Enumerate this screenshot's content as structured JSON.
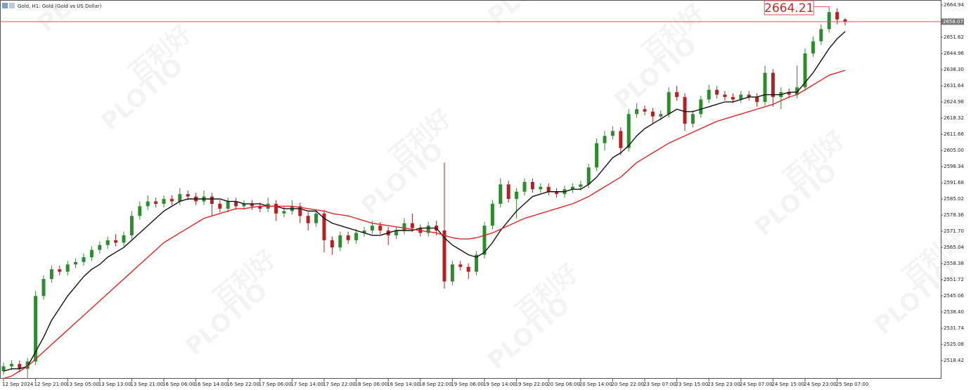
{
  "chart_data": {
    "type": "candlestick",
    "title": "Gold, H1: Gold (Gold vs US Dollar)",
    "watermark": [
      "PLOTIO",
      "百利好"
    ],
    "bull_color": "#2e8b2e",
    "bear_color": "#b22222",
    "price_line_color": "#d9534f",
    "categories": [
      "12 Sep 2024",
      null,
      null,
      null,
      "12 Sep 21:00",
      null,
      null,
      null,
      "13 Sep 05:00",
      null,
      null,
      null,
      "13 Sep 13:00",
      null,
      null,
      null,
      "13 Sep 21:00",
      null,
      null,
      null,
      "16 Sep 06:00",
      null,
      null,
      null,
      "16 Sep 14:00",
      null,
      null,
      null,
      "16 Sep 22:00",
      null,
      null,
      null,
      "17 Sep 06:00",
      null,
      null,
      null,
      "17 Sep 14:00",
      null,
      null,
      null,
      "17 Sep 22:00",
      null,
      null,
      null,
      "18 Sep 06:00",
      null,
      null,
      null,
      "18 Sep 14:00",
      null,
      null,
      null,
      "18 Sep 22:00",
      null,
      null,
      null,
      "19 Sep 06:00",
      null,
      null,
      null,
      "19 Sep 14:00",
      null,
      null,
      null,
      "19 Sep 22:00",
      null,
      null,
      null,
      "20 Sep 06:00",
      null,
      null,
      null,
      "20 Sep 14:00",
      null,
      null,
      null,
      "20 Sep 22:00",
      null,
      null,
      null,
      "23 Sep 07:00",
      null,
      null,
      null,
      "23 Sep 15:00",
      null,
      null,
      null,
      "23 Sep 23:00",
      null,
      null,
      null,
      "24 Sep 07:00",
      null,
      null,
      null,
      "24 Sep 15:00",
      null,
      null,
      null,
      "24 Sep 23:00",
      null,
      null,
      null,
      "25 Sep 07:00",
      null
    ],
    "open": [
      2514,
      2516,
      2517,
      2515,
      2518,
      2545,
      2552,
      2556,
      2555,
      2558,
      2559,
      2561,
      2564,
      2566,
      2568,
      2567,
      2570,
      2578,
      2582,
      2584,
      2583,
      2585,
      2584,
      2587,
      2586,
      2584,
      2586,
      2583,
      2581,
      2584,
      2582,
      2583,
      2582,
      2581,
      2583,
      2579,
      2580,
      2582,
      2578,
      2575,
      2579,
      2568,
      2565,
      2570,
      2568,
      2571,
      2572,
      2574,
      2572,
      2570,
      2572,
      2575,
      2573,
      2571,
      2574,
      2572,
      2551,
      2558,
      2557,
      2555,
      2562,
      2574,
      2583,
      2591,
      2585,
      2588,
      2592,
      2589,
      2590,
      2588,
      2587,
      2589,
      2590,
      2591,
      2598,
      2608,
      2611,
      2613,
      2606,
      2620,
      2622,
      2621,
      2619,
      2620,
      2629,
      2627,
      2616,
      2620,
      2626,
      2630,
      2628,
      2627,
      2626,
      2628,
      2627,
      2625,
      2637,
      2627,
      2629,
      2628,
      2631,
      2645,
      2650,
      2655,
      2662,
      2659
    ],
    "high": [
      2517.5,
      2518.5,
      2518.5,
      2519.5,
      2547,
      2553.5,
      2557.5,
      2557.5,
      2559.5,
      2560.5,
      2562.5,
      2565.5,
      2567.5,
      2569.5,
      2570.5,
      2571.5,
      2580,
      2584,
      2586.5,
      2585.5,
      2586.5,
      2586.5,
      2589.5,
      2588.5,
      2587.5,
      2588.5,
      2587.5,
      2584.5,
      2585.5,
      2585.5,
      2584.5,
      2584.5,
      2583.5,
      2585.5,
      2584.5,
      2582,
      2584.5,
      2583.5,
      2579.5,
      2580.5,
      2580.5,
      2569.5,
      2571.5,
      2571.5,
      2572.5,
      2573.5,
      2576,
      2575.5,
      2573.5,
      2573.5,
      2577,
      2579,
      2574.5,
      2575.5,
      2576,
      2600,
      2559.5,
      2559.5,
      2558.5,
      2563.5,
      2575.5,
      2584.5,
      2593.5,
      2592.5,
      2589.5,
      2593.5,
      2593.5,
      2591.5,
      2591.5,
      2589.5,
      2590.5,
      2591.5,
      2592.5,
      2599.5,
      2610,
      2613,
      2615,
      2614.5,
      2622,
      2624.5,
      2623.5,
      2622.5,
      2621.5,
      2631,
      2631.5,
      2628.5,
      2621.5,
      2627.5,
      2632,
      2631.5,
      2629.5,
      2628.5,
      2629.5,
      2629.5,
      2628.5,
      2640,
      2638.5,
      2631,
      2630.5,
      2640,
      2647,
      2652,
      2657,
      2664.21,
      2663.5,
      2659.5
    ],
    "low": [
      2512.5,
      2514.5,
      2513.5,
      2511,
      2516.5,
      2543.5,
      2550.5,
      2553.5,
      2553.5,
      2556.5,
      2557.5,
      2559.5,
      2562.5,
      2564.5,
      2565.5,
      2565.5,
      2568.5,
      2576.5,
      2580.5,
      2581.5,
      2581.5,
      2582.5,
      2582.5,
      2584.5,
      2582.5,
      2582.5,
      2578,
      2579.5,
      2579.5,
      2580.5,
      2580.5,
      2580.5,
      2579.5,
      2579.5,
      2576,
      2577.5,
      2578.5,
      2575,
      2572,
      2573.5,
      2563,
      2562,
      2563.5,
      2566.5,
      2566.5,
      2569.5,
      2570.5,
      2570.5,
      2566,
      2568.5,
      2570.5,
      2571.5,
      2569.5,
      2569.5,
      2570,
      2548,
      2549.5,
      2555.5,
      2552,
      2553.5,
      2560.5,
      2572.5,
      2581.5,
      2583.5,
      2577,
      2586.5,
      2587.5,
      2587.5,
      2586.5,
      2585.5,
      2585.5,
      2587.5,
      2588.5,
      2589.5,
      2596.5,
      2605,
      2609.5,
      2603,
      2604.5,
      2618.5,
      2619.5,
      2616,
      2617.5,
      2618.5,
      2625.5,
      2613,
      2614.5,
      2618.5,
      2624.5,
      2626.5,
      2625.5,
      2624.5,
      2624.5,
      2625.5,
      2623,
      2623.5,
      2623,
      2622,
      2626.5,
      2626.5,
      2629.5,
      2643.5,
      2648.5,
      2653.5,
      2657,
      2656.5
    ],
    "close": [
      2516,
      2517,
      2515,
      2518,
      2545,
      2552,
      2556,
      2555,
      2558,
      2559,
      2561,
      2564,
      2566,
      2568,
      2567,
      2570,
      2578,
      2582,
      2584,
      2583,
      2585,
      2584,
      2587,
      2586,
      2584,
      2586,
      2583,
      2581,
      2584,
      2582,
      2583,
      2582,
      2581,
      2583,
      2579,
      2580,
      2582,
      2578,
      2575,
      2579,
      2568,
      2565,
      2570,
      2568,
      2571,
      2572,
      2574,
      2572,
      2570,
      2572,
      2575,
      2573,
      2571,
      2574,
      2572,
      2551,
      2558,
      2557,
      2555,
      2562,
      2574,
      2583,
      2591,
      2585,
      2588,
      2592,
      2589,
      2590,
      2588,
      2587,
      2589,
      2590,
      2591,
      2598,
      2608,
      2611,
      2613,
      2606,
      2620,
      2622,
      2621,
      2619,
      2620,
      2629,
      2627,
      2616,
      2620,
      2626,
      2630,
      2628,
      2627,
      2626,
      2628,
      2627,
      2625,
      2637,
      2627,
      2629,
      2628,
      2631,
      2645,
      2650,
      2655,
      2662,
      2659,
      2658.07
    ],
    "lines": [
      {
        "color": "#111111",
        "values": [
          2514,
          2515,
          2515,
          2516,
          2522,
          2528,
          2535,
          2540,
          2545,
          2549,
          2553,
          2556,
          2558,
          2561,
          2563,
          2565,
          2568,
          2571,
          2574,
          2577,
          2580,
          2582,
          2584,
          2585,
          2585,
          2585,
          2585,
          2585,
          2584,
          2584,
          2583,
          2583,
          2583,
          2582,
          2582,
          2581,
          2581,
          2581,
          2580,
          2580,
          2577,
          2575,
          2574,
          2573,
          2572,
          2571,
          2570,
          2570,
          2571,
          2572,
          2572,
          2572,
          2573,
          2573,
          2573,
          2569,
          2566,
          2564,
          2562,
          2561,
          2563,
          2567,
          2572,
          2576,
          2580,
          2583,
          2586,
          2587,
          2588,
          2588,
          2588,
          2589,
          2589,
          2591,
          2594,
          2598,
          2602,
          2604,
          2607,
          2611,
          2614,
          2616,
          2618,
          2620,
          2622,
          2621,
          2621,
          2622,
          2623,
          2624,
          2625,
          2625,
          2626,
          2627,
          2627,
          2628,
          2628,
          2628,
          2629,
          2629,
          2633,
          2637,
          2642,
          2647,
          2651,
          2654
        ]
      },
      {
        "color": "#e02424",
        "values": [
          2511,
          2512,
          2514,
          2516,
          2519,
          2522,
          2525,
          2528,
          2531,
          2534,
          2537,
          2540,
          2543,
          2546,
          2549,
          2552,
          2555,
          2558,
          2561,
          2564,
          2567,
          2569,
          2571,
          2573,
          2575,
          2577,
          2578,
          2579,
          2580,
          2581,
          2581,
          2581.5,
          2582,
          2582,
          2582,
          2582,
          2582,
          2581.5,
          2581,
          2580.5,
          2580,
          2579,
          2578.5,
          2578,
          2577,
          2576,
          2575,
          2574.5,
          2574,
          2573.5,
          2573,
          2572.5,
          2572,
          2571.5,
          2571,
          2570,
          2569,
          2568.5,
          2568.5,
          2569,
          2570,
          2571,
          2572.5,
          2574,
          2575.5,
          2577,
          2578,
          2579,
          2580,
          2581,
          2582,
          2583,
          2584.5,
          2586,
          2588,
          2590,
          2592,
          2594,
          2597,
          2600,
          2602,
          2604,
          2606,
          2608,
          2609.5,
          2611,
          2612.5,
          2614,
          2615.5,
          2617,
          2618,
          2619,
          2620,
          2621,
          2622,
          2623,
          2624,
          2625.5,
          2627,
          2628,
          2630,
          2632,
          2634,
          2636,
          2637,
          2638
        ]
      }
    ],
    "ylim": [
      2510.6,
      2667.0
    ],
    "yticks": [
      2664.94,
      2651.62,
      2644.96,
      {
        "value": 2638.3,
        "label": "2638.30"
      },
      2631.64,
      2624.98,
      2618.32,
      2611.66,
      {
        "value": 2605,
        "label": "2605.00"
      },
      2598.34,
      2591.68,
      2585.02,
      2578.36,
      {
        "value": 2571.7,
        "label": "2571.70"
      },
      2565.04,
      2558.38,
      2551.72,
      2545.06,
      {
        "value": 2538.4,
        "label": "2538.40"
      },
      2531.74,
      2525.08,
      2518.42
    ]
  }
}
